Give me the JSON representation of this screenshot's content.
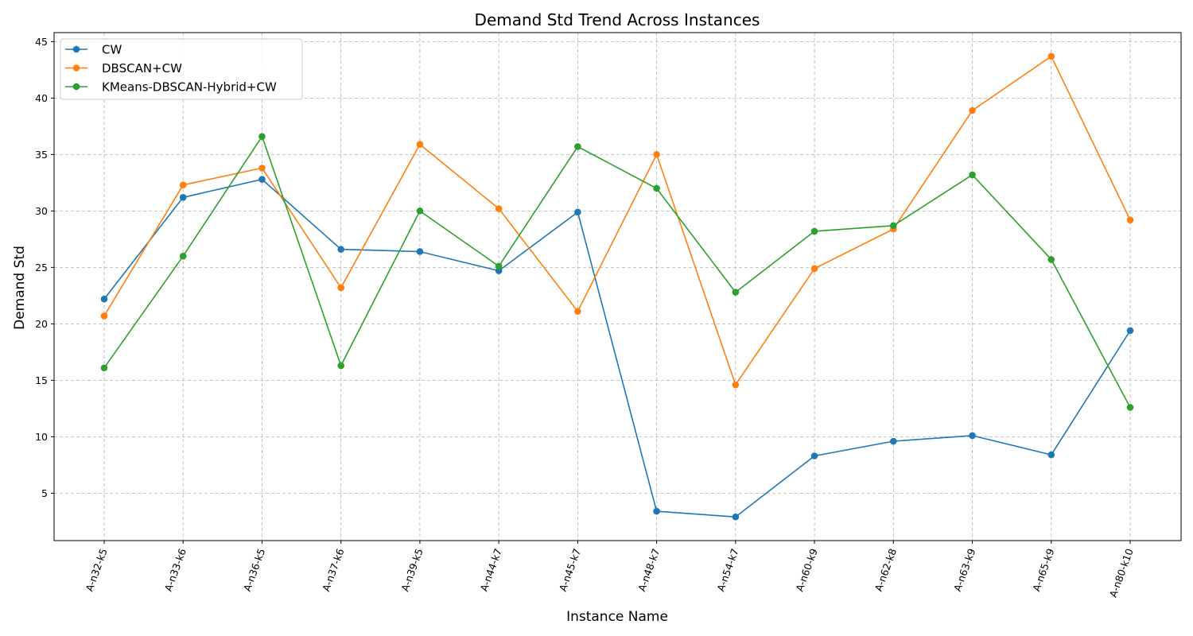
{
  "chart_data": {
    "type": "line",
    "title": "Demand Std Trend Across Instances",
    "xlabel": "Instance Name",
    "ylabel": "Demand Std",
    "categories": [
      "A-n32-k5",
      "A-n33-k6",
      "A-n36-k5",
      "A-n37-k6",
      "A-n39-k5",
      "A-n44-k7",
      "A-n45-k7",
      "A-n48-k7",
      "A-n54-k7",
      "A-n60-k9",
      "A-n62-k8",
      "A-n63-k9",
      "A-n65-k9",
      "A-n80-k10"
    ],
    "ylim": [
      0.8,
      45.8
    ],
    "yticks": [
      "5",
      "10",
      "15",
      "20",
      "25",
      "30",
      "35",
      "40",
      "45"
    ],
    "grid": true,
    "legend_position": "top-left",
    "series": [
      {
        "name": "CW",
        "color": "#1f77b4",
        "values": [
          22.2,
          31.2,
          32.8,
          26.6,
          26.4,
          24.7,
          29.9,
          3.4,
          2.9,
          8.3,
          9.6,
          10.1,
          8.4,
          19.4
        ]
      },
      {
        "name": "DBSCAN+CW",
        "color": "#ff7f0e",
        "values": [
          20.7,
          32.3,
          33.8,
          23.2,
          35.9,
          30.2,
          21.1,
          35.0,
          14.6,
          24.9,
          28.4,
          38.9,
          43.7,
          29.2
        ]
      },
      {
        "name": "KMeans-DBSCAN-Hybrid+CW",
        "color": "#2ca02c",
        "values": [
          16.1,
          26.0,
          36.6,
          16.3,
          30.0,
          25.1,
          35.7,
          32.0,
          22.8,
          28.2,
          28.7,
          33.2,
          25.7,
          12.6
        ]
      }
    ]
  }
}
